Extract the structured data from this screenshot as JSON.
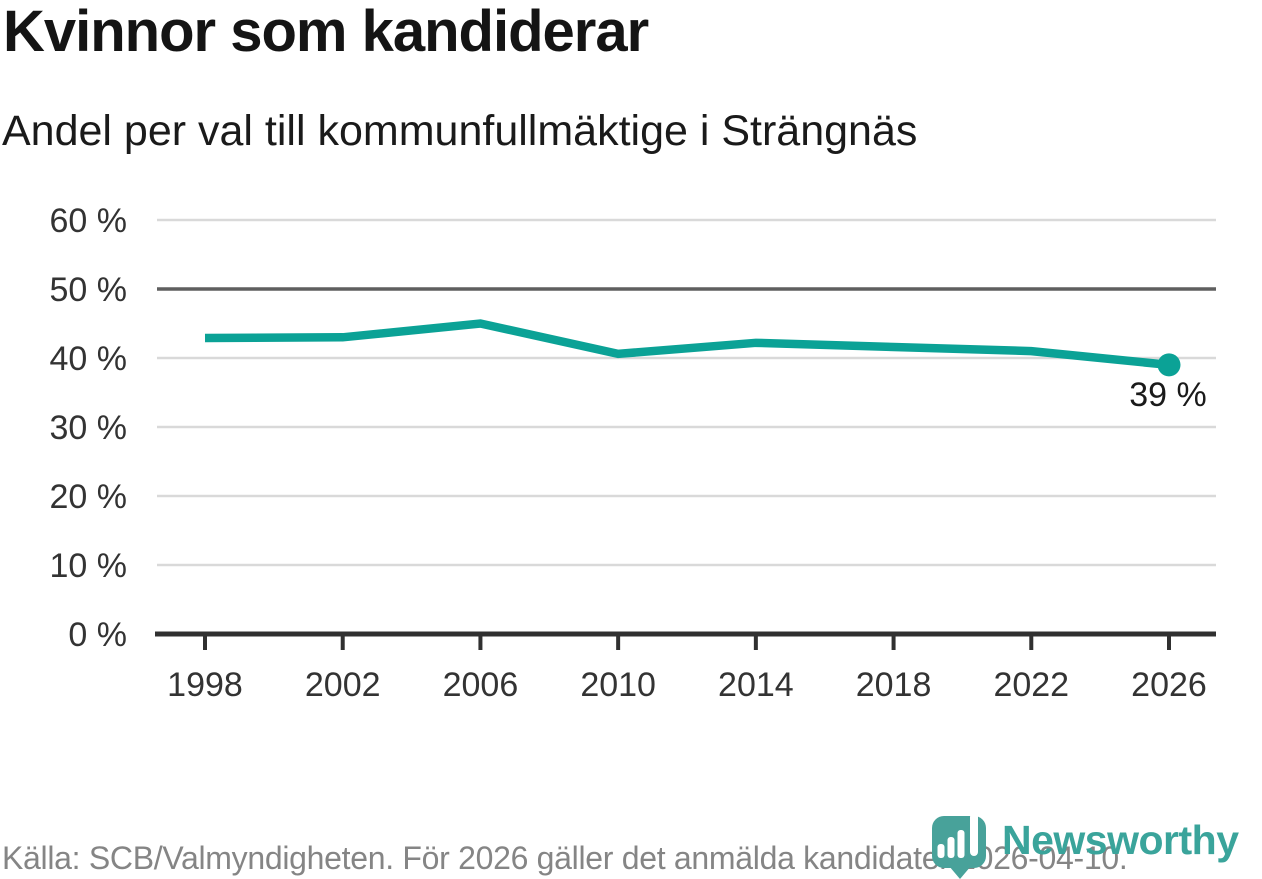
{
  "chart_data": {
    "type": "line",
    "title": "Kvinnor som kandiderar",
    "subtitle": "Andel per val till kommunfullmäktige i Strängnäs",
    "source_note": "Källa: SCB/Valmyndigheten. För 2026 gäller det anmälda kandidater 2026-04-10.",
    "categories": [
      1998,
      2002,
      2006,
      2010,
      2014,
      2018,
      2022,
      2026
    ],
    "values": [
      42.9,
      43,
      45,
      40.6,
      42.2,
      41.6,
      41,
      39
    ],
    "xlabel": "",
    "ylabel": "",
    "ylim": [
      0,
      60
    ],
    "yticks": [
      0,
      10,
      20,
      30,
      40,
      50,
      60
    ],
    "ytick_suffix": " %",
    "grid": "horizontal",
    "reference_line": 50,
    "end_label": "39 %",
    "legend": "none",
    "colors": {
      "line": "#0ba296",
      "grid": "#d9d9d9",
      "reference_line": "#5f5f5f",
      "axis": "#303030",
      "tick_labels": "#333333",
      "title": "#141414",
      "subtitle": "#1a1a1a",
      "source": "#858585",
      "end_label": "#1a1a1a",
      "brand": "#48a29a"
    }
  },
  "branding": {
    "name": "Newsworthy"
  }
}
